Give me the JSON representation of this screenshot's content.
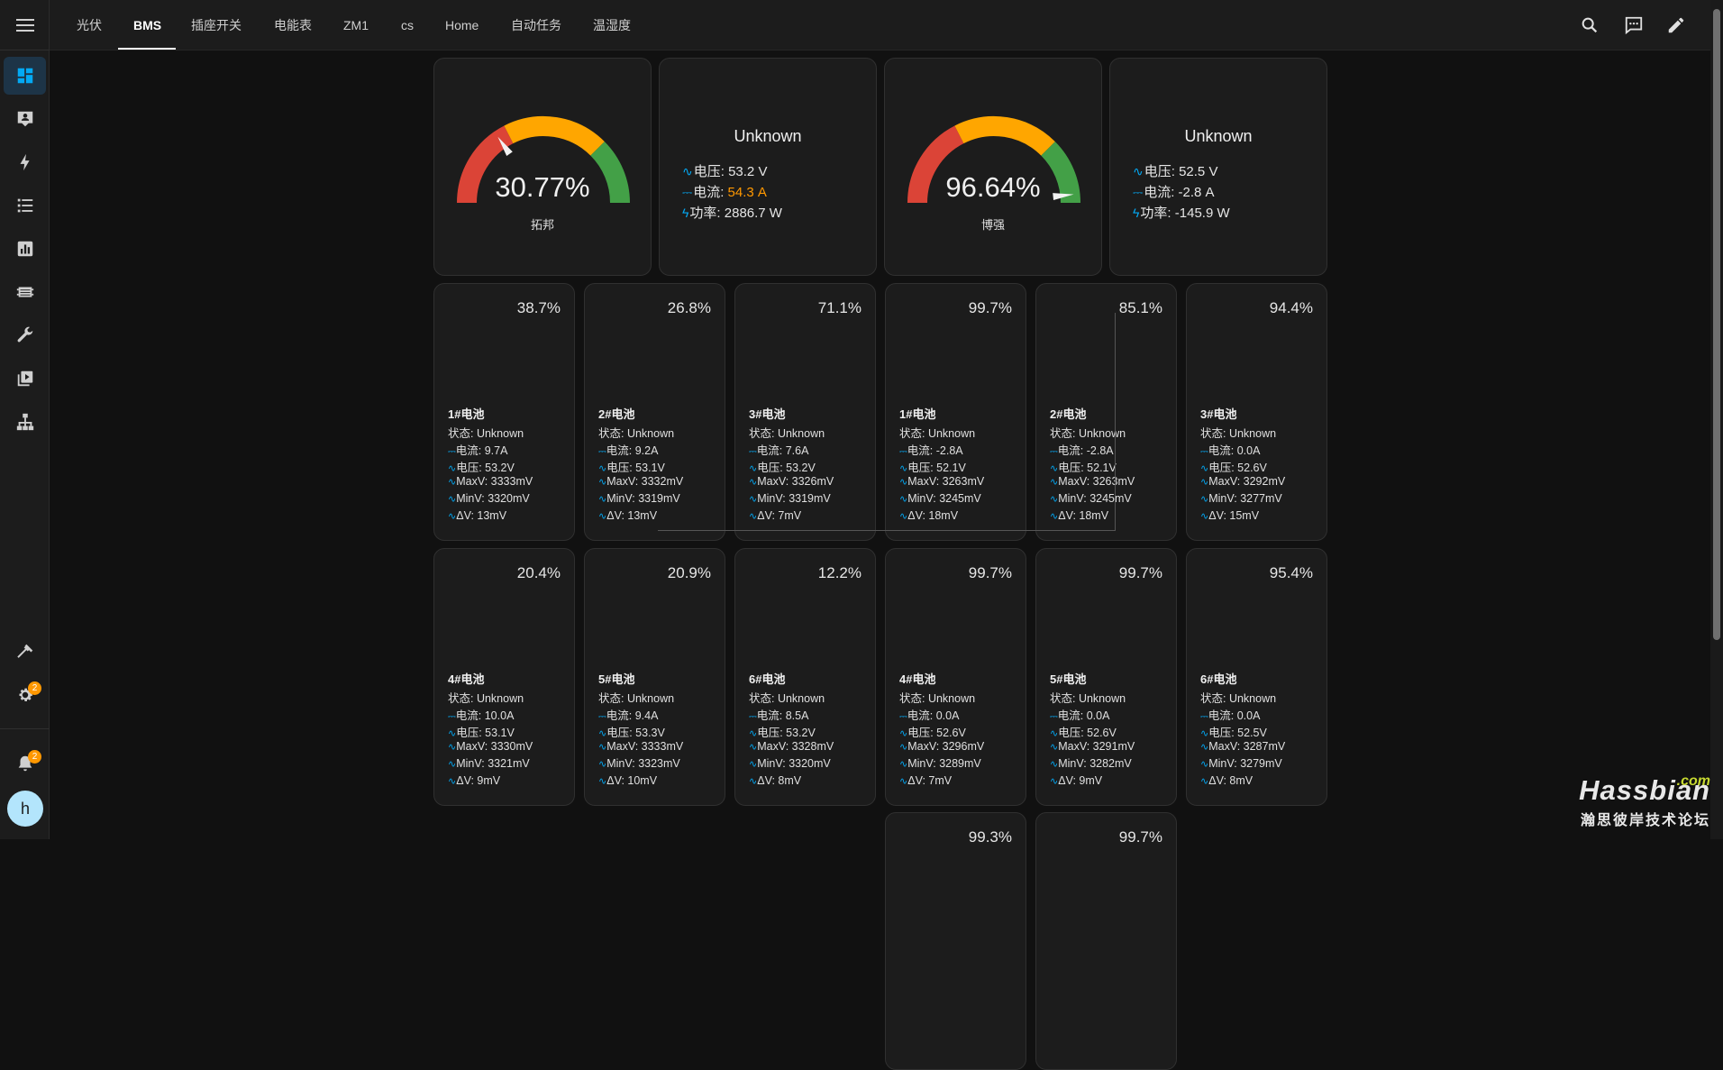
{
  "header": {
    "tabs": [
      "光伏",
      "BMS",
      "插座开关",
      "电能表",
      "ZM1",
      "cs",
      "Home",
      "自动任务",
      "温湿度"
    ],
    "active_tab": "BMS"
  },
  "sidebar": {
    "icons": [
      "overview-icon",
      "account-box-icon",
      "energy-icon",
      "logbook-icon",
      "history-icon",
      "memory-icon",
      "wrench-icon",
      "media-icon",
      "network-icon"
    ],
    "settings_badge": "2",
    "notifications_badge": "2",
    "user_initial": "h"
  },
  "gauges": [
    {
      "value": 30.77,
      "display": "30.77%",
      "name": "拓邦",
      "min": 0,
      "max": 100
    },
    {
      "value": 96.64,
      "display": "96.64%",
      "name": "博强",
      "min": 0,
      "max": 100
    }
  ],
  "power_cards": [
    {
      "state": "Unknown",
      "voltage_label": "电压:",
      "voltage": "53.2 V",
      "current_label": "电流:",
      "current": "54.3 A",
      "power_label": "功率:",
      "power": "2886.7 W"
    },
    {
      "state": "Unknown",
      "voltage_label": "电压:",
      "voltage": "52.5 V",
      "current_label": "电流:",
      "current": "-2.8 A",
      "power_label": "功率:",
      "power": "-145.9 W"
    }
  ],
  "battery_labels": {
    "status": "状态: ",
    "current": "电流: ",
    "voltage": "电压: ",
    "maxv": "MaxV: ",
    "minv": "MinV: ",
    "dv": "ΔV: "
  },
  "batteries": [
    {
      "pct": "38.7%",
      "name": "1#电池",
      "status": "Unknown",
      "current": "9.7A",
      "voltage": "53.2V",
      "maxv": "3333mV",
      "minv": "3320mV",
      "dv": "13mV"
    },
    {
      "pct": "26.8%",
      "name": "2#电池",
      "status": "Unknown",
      "current": "9.2A",
      "voltage": "53.1V",
      "maxv": "3332mV",
      "minv": "3319mV",
      "dv": "13mV"
    },
    {
      "pct": "71.1%",
      "name": "3#电池",
      "status": "Unknown",
      "current": "7.6A",
      "voltage": "53.2V",
      "maxv": "3326mV",
      "minv": "3319mV",
      "dv": "7mV"
    },
    {
      "pct": "99.7%",
      "name": "1#电池",
      "status": "Unknown",
      "current": "-2.8A",
      "voltage": "52.1V",
      "maxv": "3263mV",
      "minv": "3245mV",
      "dv": "18mV"
    },
    {
      "pct": "85.1%",
      "name": "2#电池",
      "status": "Unknown",
      "current": "-2.8A",
      "voltage": "52.1V",
      "maxv": "3263mV",
      "minv": "3245mV",
      "dv": "18mV"
    },
    {
      "pct": "94.4%",
      "name": "3#电池",
      "status": "Unknown",
      "current": "0.0A",
      "voltage": "52.6V",
      "maxv": "3292mV",
      "minv": "3277mV",
      "dv": "15mV"
    },
    {
      "pct": "20.4%",
      "name": "4#电池",
      "status": "Unknown",
      "current": "10.0A",
      "voltage": "53.1V",
      "maxv": "3330mV",
      "minv": "3321mV",
      "dv": "9mV"
    },
    {
      "pct": "20.9%",
      "name": "5#电池",
      "status": "Unknown",
      "current": "9.4A",
      "voltage": "53.3V",
      "maxv": "3333mV",
      "minv": "3323mV",
      "dv": "10mV"
    },
    {
      "pct": "12.2%",
      "name": "6#电池",
      "status": "Unknown",
      "current": "8.5A",
      "voltage": "53.2V",
      "maxv": "3328mV",
      "minv": "3320mV",
      "dv": "8mV"
    },
    {
      "pct": "99.7%",
      "name": "4#电池",
      "status": "Unknown",
      "current": "0.0A",
      "voltage": "52.6V",
      "maxv": "3296mV",
      "minv": "3289mV",
      "dv": "7mV"
    },
    {
      "pct": "99.7%",
      "name": "5#电池",
      "status": "Unknown",
      "current": "0.0A",
      "voltage": "52.6V",
      "maxv": "3291mV",
      "minv": "3282mV",
      "dv": "9mV"
    },
    {
      "pct": "95.4%",
      "name": "6#电池",
      "status": "Unknown",
      "current": "0.0A",
      "voltage": "52.5V",
      "maxv": "3287mV",
      "minv": "3279mV",
      "dv": "8mV"
    },
    {
      "pct": "99.3%"
    },
    {
      "pct": "99.7%"
    }
  ],
  "watermark": {
    "main": "Hassbian",
    "com": ".com",
    "sub": "瀚思彼岸技术论坛"
  },
  "colors": {
    "gauge_red": "#db4437",
    "gauge_yellow": "#ffa600",
    "gauge_green": "#43a047",
    "accent": "#03a9f4",
    "warning": "#ff9800"
  }
}
